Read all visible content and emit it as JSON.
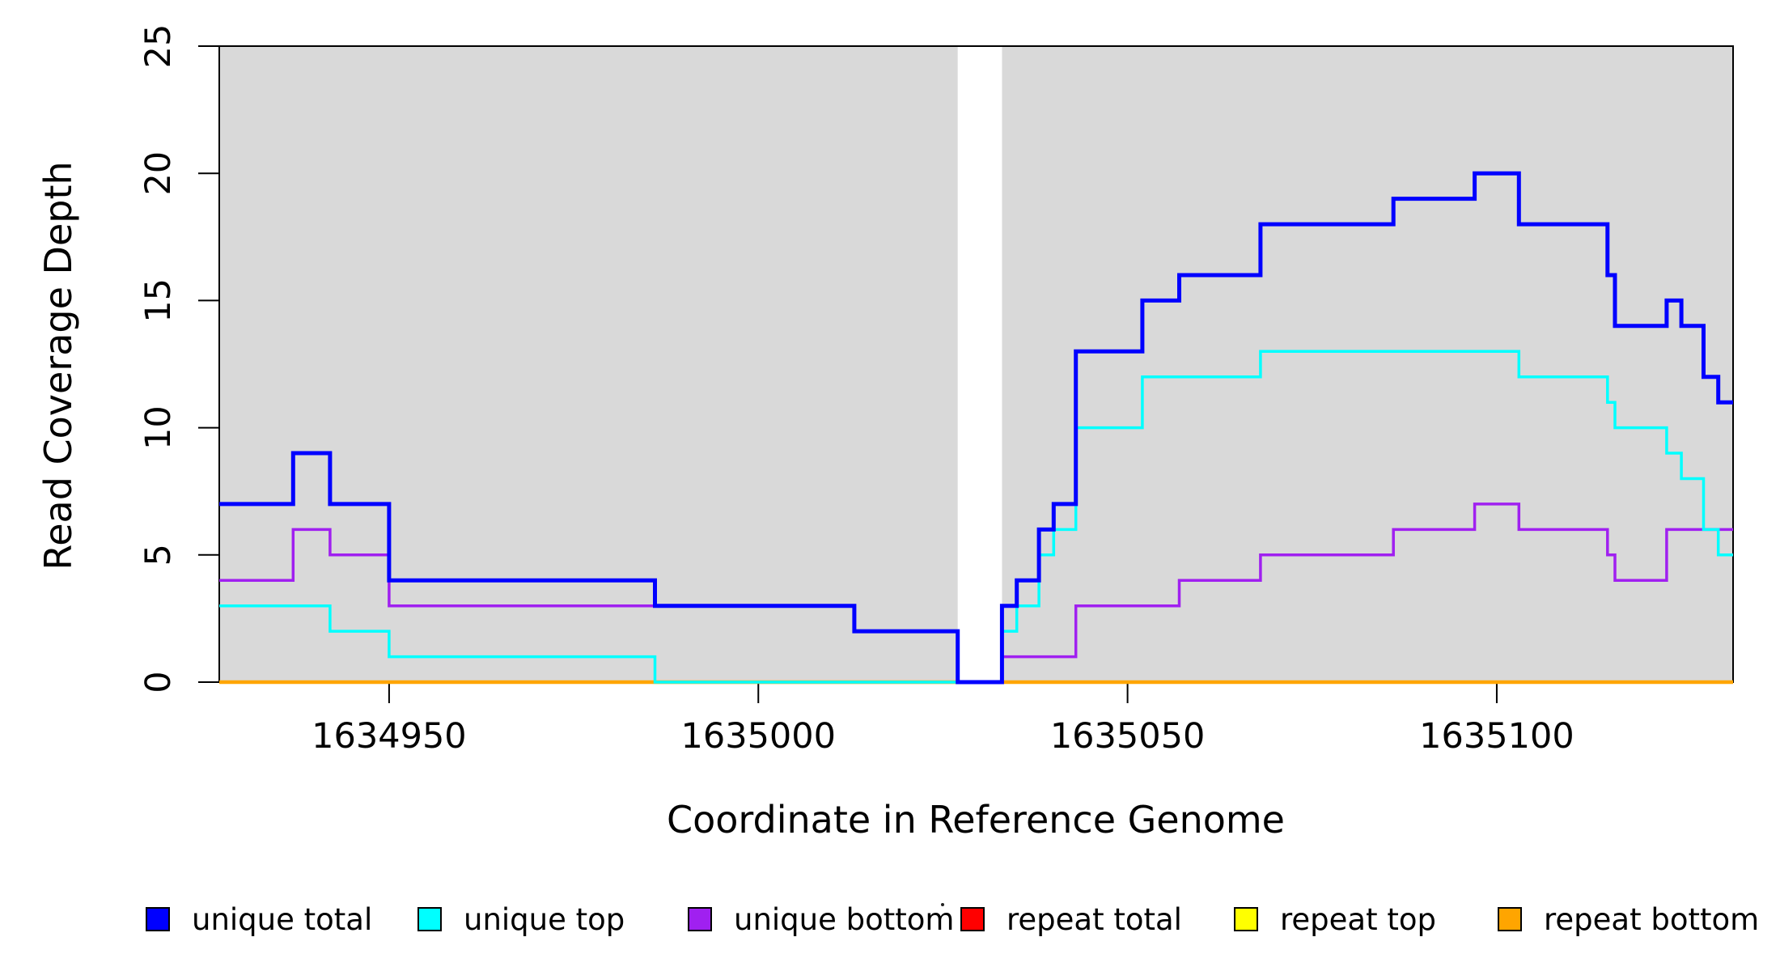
{
  "figure": {
    "x_axis_title": "Coordinate in Reference Genome",
    "y_axis_title": "Read Coverage Depth"
  },
  "chart_data": {
    "type": "line",
    "subtype": "step-after-coverage-plot",
    "title": "",
    "xlabel": "Coordinate in Reference Genome",
    "ylabel": "Read Coverage Depth",
    "x_range": [
      1634927,
      1635132
    ],
    "y_range": [
      0,
      25
    ],
    "x_ticks": [
      1634950,
      1635000,
      1635050,
      1635100
    ],
    "y_ticks": [
      0,
      5,
      10,
      15,
      20,
      25
    ],
    "grid": "off",
    "plot_background_color": "#D9D9D9",
    "page_background_color": "#FFFFFF",
    "background_regions": [
      [
        1634927,
        1635027
      ],
      [
        1635033,
        1635132
      ]
    ],
    "zero_coverage_gap": [
      1635027,
      1635033
    ],
    "series": [
      {
        "name": "unique total",
        "color": "#0000FF",
        "points": [
          [
            1634927,
            7
          ],
          [
            1634937,
            9
          ],
          [
            1634942,
            7
          ],
          [
            1634950,
            4
          ],
          [
            1634986,
            3
          ],
          [
            1635013,
            2
          ],
          [
            1635027,
            0
          ],
          [
            1635033,
            3
          ],
          [
            1635035,
            4
          ],
          [
            1635038,
            6
          ],
          [
            1635040,
            7
          ],
          [
            1635043,
            13
          ],
          [
            1635052,
            15
          ],
          [
            1635057,
            16
          ],
          [
            1635068,
            18
          ],
          [
            1635086,
            19
          ],
          [
            1635097,
            20
          ],
          [
            1635103,
            18
          ],
          [
            1635115,
            16
          ],
          [
            1635116,
            14
          ],
          [
            1635123,
            15
          ],
          [
            1635125,
            14
          ],
          [
            1635128,
            12
          ],
          [
            1635130,
            11
          ],
          [
            1635132,
            11
          ]
        ]
      },
      {
        "name": "unique top",
        "color": "#00FFFF",
        "points": [
          [
            1634927,
            3
          ],
          [
            1634942,
            2
          ],
          [
            1634950,
            1
          ],
          [
            1634986,
            0
          ],
          [
            1635033,
            2
          ],
          [
            1635035,
            3
          ],
          [
            1635038,
            5
          ],
          [
            1635040,
            6
          ],
          [
            1635043,
            10
          ],
          [
            1635052,
            12
          ],
          [
            1635068,
            13
          ],
          [
            1635103,
            12
          ],
          [
            1635115,
            11
          ],
          [
            1635116,
            10
          ],
          [
            1635123,
            9
          ],
          [
            1635125,
            8
          ],
          [
            1635128,
            6
          ],
          [
            1635130,
            5
          ],
          [
            1635132,
            5
          ]
        ]
      },
      {
        "name": "unique bottom",
        "color": "#A020F0",
        "points": [
          [
            1634927,
            4
          ],
          [
            1634937,
            6
          ],
          [
            1634942,
            5
          ],
          [
            1634950,
            3
          ],
          [
            1635013,
            2
          ],
          [
            1635027,
            0
          ],
          [
            1635033,
            1
          ],
          [
            1635043,
            3
          ],
          [
            1635057,
            4
          ],
          [
            1635068,
            5
          ],
          [
            1635086,
            6
          ],
          [
            1635097,
            7
          ],
          [
            1635103,
            6
          ],
          [
            1635115,
            5
          ],
          [
            1635116,
            4
          ],
          [
            1635123,
            6
          ],
          [
            1635132,
            6
          ]
        ]
      },
      {
        "name": "repeat total",
        "color": "#FF0000",
        "points": [
          [
            1634927,
            0
          ],
          [
            1635132,
            0
          ]
        ]
      },
      {
        "name": "repeat top",
        "color": "#FFFF00",
        "points": [
          [
            1634927,
            0
          ],
          [
            1635132,
            0
          ]
        ]
      },
      {
        "name": "repeat bottom",
        "color": "#FFA500",
        "points": [
          [
            1634927,
            0
          ],
          [
            1635132,
            0
          ]
        ]
      }
    ]
  },
  "legend": {
    "items": [
      {
        "label": "unique total",
        "color": "#0000FF"
      },
      {
        "label": "unique top",
        "color": "#00FFFF"
      },
      {
        "label": "unique bottom",
        "color": "#A020F0"
      },
      {
        "label": "repeat total",
        "color": "#FF0000"
      },
      {
        "label": "repeat top",
        "color": "#FFFF00"
      },
      {
        "label": "repeat bottom",
        "color": "#FFA500"
      }
    ],
    "stray_mark": "·"
  }
}
